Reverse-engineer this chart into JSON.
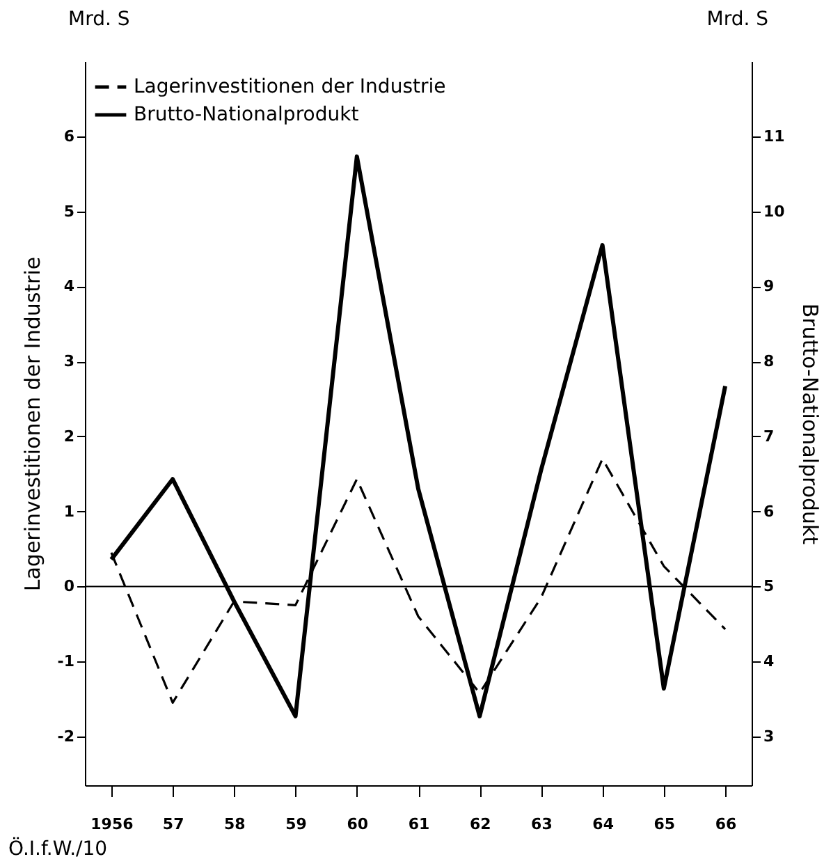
{
  "chart_data": {
    "type": "line",
    "x": [
      1956,
      1957,
      1958,
      1959,
      1960,
      1961,
      1962,
      1963,
      1964,
      1965,
      1966
    ],
    "series": [
      {
        "name": "Lagerinvestitionen der Industrie",
        "color": "#000000",
        "line_style": "dashed",
        "values": [
          0.45,
          -1.55,
          -0.2,
          -0.25,
          1.43,
          -0.4,
          -1.42,
          -0.15,
          1.7,
          0.27,
          -0.57
        ]
      },
      {
        "name": "Brutto-Nationalprodukt",
        "color": "#000000",
        "line_style": "solid",
        "axis": "y2",
        "values": [
          5.36,
          6.43,
          4.8,
          3.27,
          10.73,
          6.3,
          3.27,
          6.55,
          9.55,
          3.64,
          7.67
        ]
      }
    ],
    "ylabel": "Lagerinvestitionen der Industrie",
    "y2label": "Brutto-Nationalprodukt",
    "xlim": [
      1955.57,
      1966.43
    ],
    "xticks": [
      1956,
      {
        "value": 1957,
        "label": "57"
      },
      {
        "value": 1958,
        "label": "58"
      },
      {
        "value": 1959,
        "label": "59"
      },
      {
        "value": 1960,
        "label": "60"
      },
      {
        "value": 1961,
        "label": "61"
      },
      {
        "value": 1962,
        "label": "62"
      },
      {
        "value": 1963,
        "label": "63"
      },
      {
        "value": 1964,
        "label": "64"
      },
      {
        "value": 1965,
        "label": "65"
      },
      {
        "value": 1966,
        "label": "66"
      }
    ],
    "ylim": [
      -2.65,
      7
    ],
    "yticks": [
      -2,
      -1,
      0,
      1,
      2,
      3,
      4,
      5,
      6
    ],
    "y2lim": [
      2.35,
      12
    ],
    "y2ticks": [
      3,
      4,
      5,
      6,
      7,
      8,
      9,
      10,
      11
    ],
    "ref_lines": [
      {
        "axis": "y",
        "value": 0,
        "color": "#000000"
      }
    ],
    "annotations": [
      "Mrd. S",
      "Mrd. S",
      "Ö.I.f.W./10"
    ],
    "legend": "top left",
    "grid": false,
    "marker": "none"
  }
}
